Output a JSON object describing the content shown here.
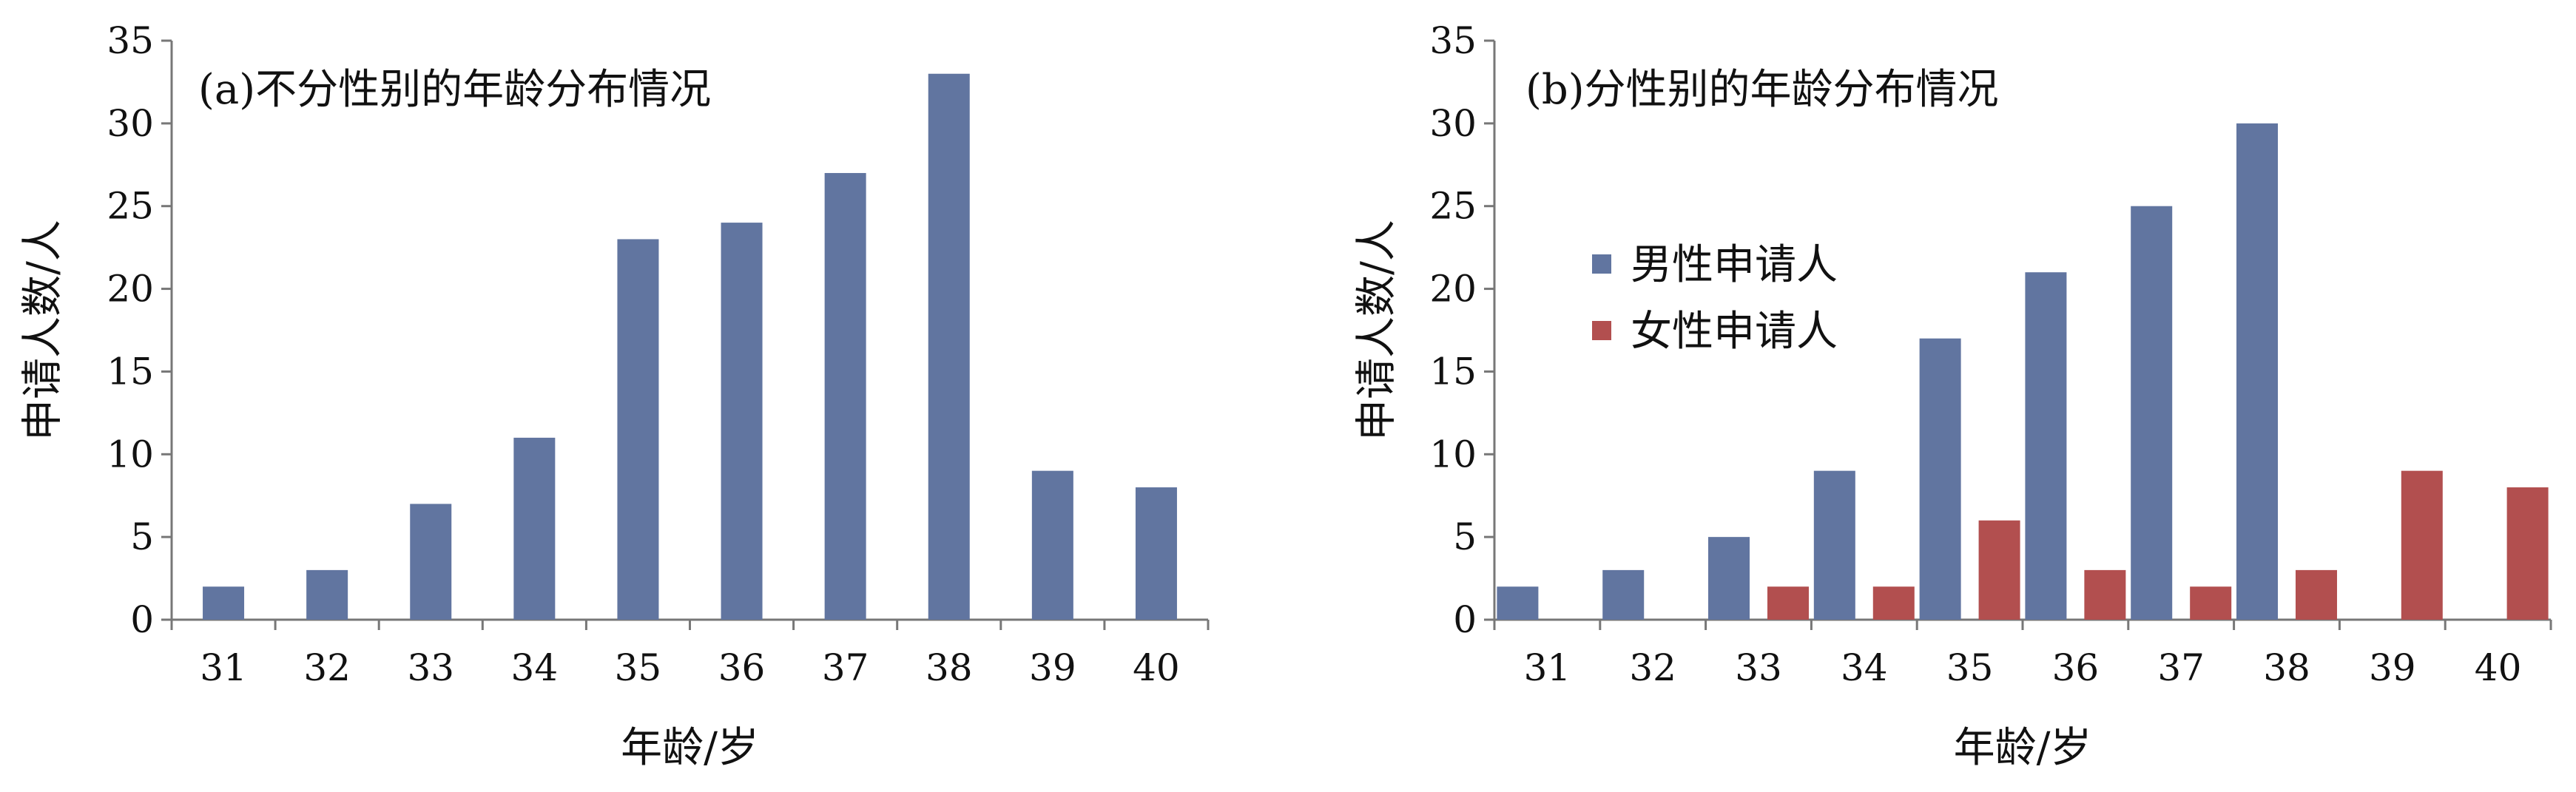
{
  "chart_data": [
    {
      "type": "bar",
      "title": "(a)不分性别的年龄分布情况",
      "xlabel": "年龄/岁",
      "ylabel": "申请人数/人",
      "ylim": [
        0,
        35
      ],
      "yticks": [
        0,
        5,
        10,
        15,
        20,
        25,
        30,
        35
      ],
      "categories": [
        "31",
        "32",
        "33",
        "34",
        "35",
        "36",
        "37",
        "38",
        "39",
        "40"
      ],
      "series": [
        {
          "values": [
            2,
            3,
            7,
            11,
            23,
            24,
            27,
            33,
            9,
            8
          ],
          "color": "#6175A0"
        }
      ],
      "legend": "none"
    },
    {
      "type": "bar",
      "title": "(b)分性别的年龄分布情况",
      "xlabel": "年龄/岁",
      "ylabel": "申请人数/人",
      "ylim": [
        0,
        35
      ],
      "yticks": [
        0,
        5,
        10,
        15,
        20,
        25,
        30,
        35
      ],
      "categories": [
        "31",
        "32",
        "33",
        "34",
        "35",
        "36",
        "37",
        "38",
        "39",
        "40"
      ],
      "series": [
        {
          "name": "男性申请人",
          "values": [
            2,
            3,
            5,
            9,
            17,
            21,
            25,
            30,
            0,
            0
          ],
          "color": "#6175A0"
        },
        {
          "name": "女性申请人",
          "values": [
            0,
            0,
            2,
            2,
            6,
            3,
            2,
            3,
            9,
            8
          ],
          "color": "#B24F4F"
        }
      ],
      "legend": "upper-left"
    }
  ]
}
